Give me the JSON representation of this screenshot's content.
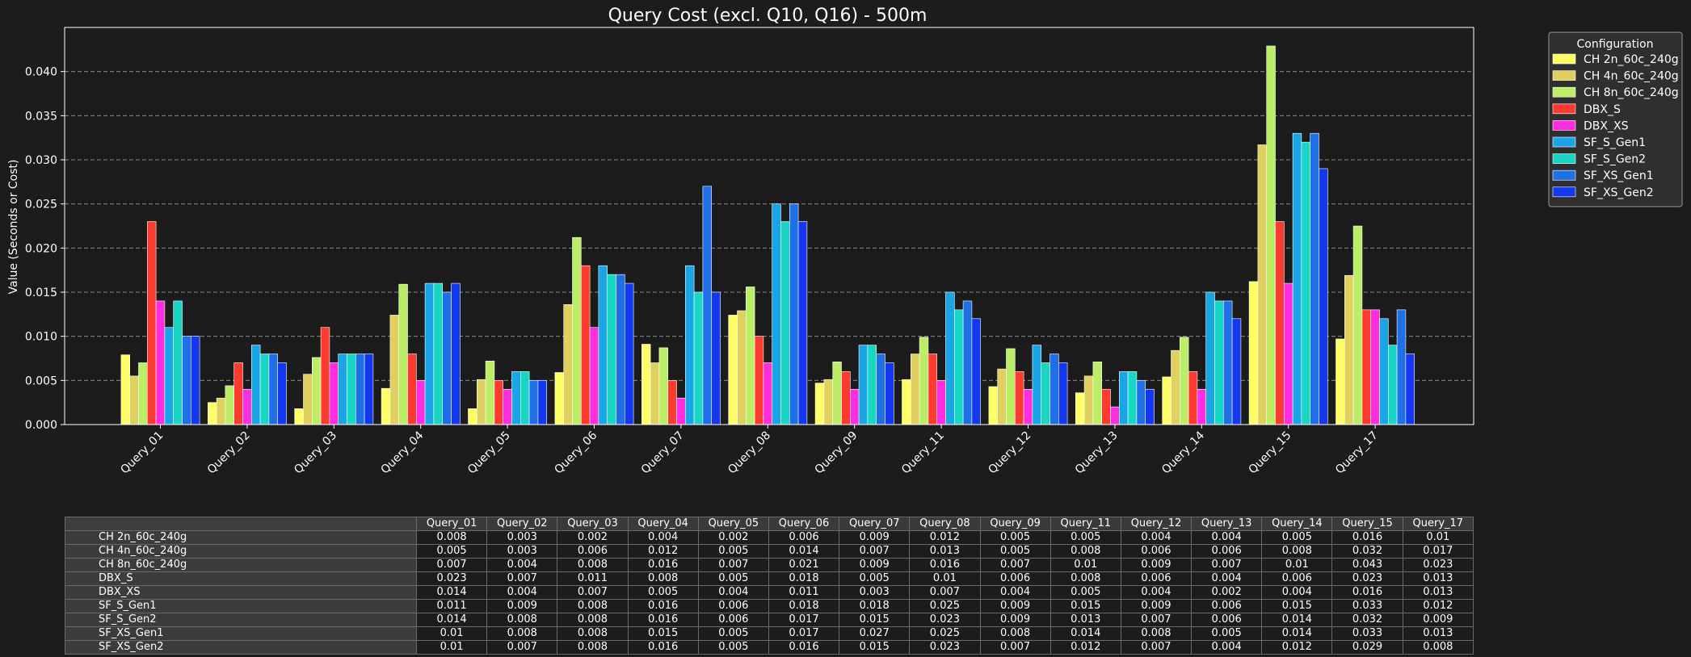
{
  "chart_data": {
    "type": "bar",
    "title": "Query Cost (excl. Q10, Q16) - 500m",
    "xlabel": "",
    "ylabel": "Value (Seconds or Cost)",
    "ylim": [
      0,
      0.045
    ],
    "yticks": [
      "0.000",
      "0.005",
      "0.010",
      "0.015",
      "0.020",
      "0.025",
      "0.030",
      "0.035",
      "0.040"
    ],
    "grid": true,
    "legend_title": "Configuration",
    "legend_position": "outside-top-right",
    "categories": [
      "Query_01",
      "Query_02",
      "Query_03",
      "Query_04",
      "Query_05",
      "Query_06",
      "Query_07",
      "Query_08",
      "Query_09",
      "Query_11",
      "Query_12",
      "Query_13",
      "Query_14",
      "Query_15",
      "Query_17"
    ],
    "series": [
      {
        "name": "CH 2n_60c_240g",
        "color": "#ffff66",
        "values": [
          0.0079,
          0.0025,
          0.0018,
          0.0041,
          0.0018,
          0.0059,
          0.0091,
          0.0124,
          0.0047,
          0.0051,
          0.0043,
          0.0036,
          0.0054,
          0.0162,
          0.0097
        ]
      },
      {
        "name": "CH 4n_60c_240g",
        "color": "#e0d060",
        "values": [
          0.0055,
          0.003,
          0.0057,
          0.0124,
          0.0051,
          0.0136,
          0.007,
          0.0129,
          0.0051,
          0.008,
          0.0063,
          0.0055,
          0.0084,
          0.0317,
          0.0169
        ]
      },
      {
        "name": "CH 8n_60c_240g",
        "color": "#bbee66",
        "values": [
          0.007,
          0.0044,
          0.0076,
          0.0159,
          0.0072,
          0.0212,
          0.0087,
          0.0156,
          0.0071,
          0.0099,
          0.0086,
          0.0071,
          0.0099,
          0.0429,
          0.0225
        ]
      },
      {
        "name": "DBX_S",
        "color": "#ff3b2f",
        "values": [
          0.023,
          0.007,
          0.011,
          0.008,
          0.005,
          0.018,
          0.005,
          0.01,
          0.006,
          0.008,
          0.006,
          0.004,
          0.006,
          0.023,
          0.013
        ]
      },
      {
        "name": "DBX_XS",
        "color": "#ff2ee0",
        "values": [
          0.014,
          0.004,
          0.007,
          0.005,
          0.004,
          0.011,
          0.003,
          0.007,
          0.004,
          0.005,
          0.004,
          0.002,
          0.004,
          0.016,
          0.013
        ]
      },
      {
        "name": "SF_S_Gen1",
        "color": "#1aa6e6",
        "values": [
          0.011,
          0.009,
          0.008,
          0.016,
          0.006,
          0.018,
          0.018,
          0.025,
          0.009,
          0.015,
          0.009,
          0.006,
          0.015,
          0.033,
          0.012
        ]
      },
      {
        "name": "SF_S_Gen2",
        "color": "#17d6c4",
        "values": [
          0.014,
          0.008,
          0.008,
          0.016,
          0.006,
          0.017,
          0.015,
          0.023,
          0.009,
          0.013,
          0.007,
          0.006,
          0.014,
          0.032,
          0.009
        ]
      },
      {
        "name": "SF_XS_Gen1",
        "color": "#1f6fe6",
        "values": [
          0.01,
          0.008,
          0.008,
          0.015,
          0.005,
          0.017,
          0.027,
          0.025,
          0.008,
          0.014,
          0.008,
          0.005,
          0.014,
          0.033,
          0.013
        ]
      },
      {
        "name": "SF_XS_Gen2",
        "color": "#1438f0",
        "values": [
          0.01,
          0.007,
          0.008,
          0.016,
          0.005,
          0.016,
          0.015,
          0.023,
          0.007,
          0.012,
          0.007,
          0.004,
          0.012,
          0.029,
          0.008
        ]
      }
    ]
  },
  "table": {
    "columns": [
      "Query_01",
      "Query_02",
      "Query_03",
      "Query_04",
      "Query_05",
      "Query_06",
      "Query_07",
      "Query_08",
      "Query_09",
      "Query_11",
      "Query_12",
      "Query_13",
      "Query_14",
      "Query_15",
      "Query_17"
    ],
    "rows": [
      {
        "label": "CH 2n_60c_240g",
        "cells": [
          "0.008",
          "0.003",
          "0.002",
          "0.004",
          "0.002",
          "0.006",
          "0.009",
          "0.012",
          "0.005",
          "0.005",
          "0.004",
          "0.004",
          "0.005",
          "0.016",
          "0.01"
        ]
      },
      {
        "label": "CH 4n_60c_240g",
        "cells": [
          "0.005",
          "0.003",
          "0.006",
          "0.012",
          "0.005",
          "0.014",
          "0.007",
          "0.013",
          "0.005",
          "0.008",
          "0.006",
          "0.006",
          "0.008",
          "0.032",
          "0.017"
        ]
      },
      {
        "label": "CH 8n_60c_240g",
        "cells": [
          "0.007",
          "0.004",
          "0.008",
          "0.016",
          "0.007",
          "0.021",
          "0.009",
          "0.016",
          "0.007",
          "0.01",
          "0.009",
          "0.007",
          "0.01",
          "0.043",
          "0.023"
        ]
      },
      {
        "label": "DBX_S",
        "cells": [
          "0.023",
          "0.007",
          "0.011",
          "0.008",
          "0.005",
          "0.018",
          "0.005",
          "0.01",
          "0.006",
          "0.008",
          "0.006",
          "0.004",
          "0.006",
          "0.023",
          "0.013"
        ]
      },
      {
        "label": "DBX_XS",
        "cells": [
          "0.014",
          "0.004",
          "0.007",
          "0.005",
          "0.004",
          "0.011",
          "0.003",
          "0.007",
          "0.004",
          "0.005",
          "0.004",
          "0.002",
          "0.004",
          "0.016",
          "0.013"
        ]
      },
      {
        "label": "SF_S_Gen1",
        "cells": [
          "0.011",
          "0.009",
          "0.008",
          "0.016",
          "0.006",
          "0.018",
          "0.018",
          "0.025",
          "0.009",
          "0.015",
          "0.009",
          "0.006",
          "0.015",
          "0.033",
          "0.012"
        ]
      },
      {
        "label": "SF_S_Gen2",
        "cells": [
          "0.014",
          "0.008",
          "0.008",
          "0.016",
          "0.006",
          "0.017",
          "0.015",
          "0.023",
          "0.009",
          "0.013",
          "0.007",
          "0.006",
          "0.014",
          "0.032",
          "0.009"
        ]
      },
      {
        "label": "SF_XS_Gen1",
        "cells": [
          "0.01",
          "0.008",
          "0.008",
          "0.015",
          "0.005",
          "0.017",
          "0.027",
          "0.025",
          "0.008",
          "0.014",
          "0.008",
          "0.005",
          "0.014",
          "0.033",
          "0.013"
        ]
      },
      {
        "label": "SF_XS_Gen2",
        "cells": [
          "0.01",
          "0.007",
          "0.008",
          "0.016",
          "0.005",
          "0.016",
          "0.015",
          "0.023",
          "0.007",
          "0.012",
          "0.007",
          "0.004",
          "0.012",
          "0.029",
          "0.008"
        ]
      }
    ]
  }
}
